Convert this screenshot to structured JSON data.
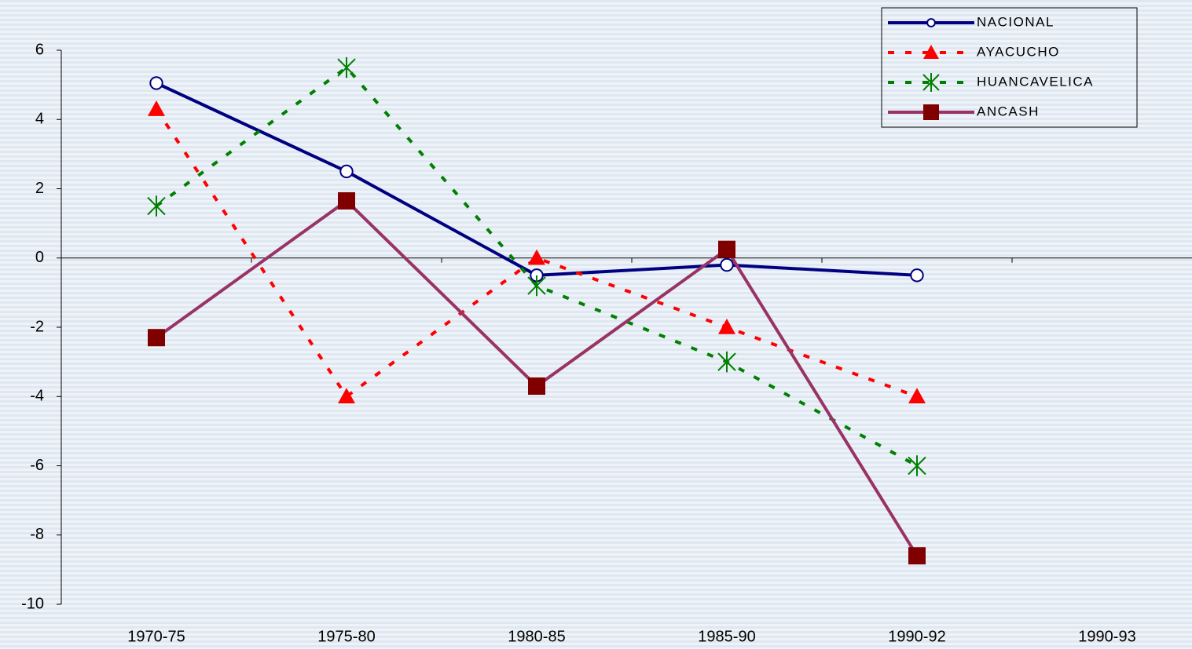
{
  "chart_data": {
    "type": "line",
    "categories": [
      "1970-75",
      "1975-80",
      "1980-85",
      "1985-90",
      "1990-92",
      "1990-93"
    ],
    "series": [
      {
        "name": "NACIONAL",
        "color": "#000080",
        "dash": false,
        "marker": "circle",
        "values": [
          5.05,
          2.5,
          -0.5,
          -0.2,
          -0.5,
          null
        ]
      },
      {
        "name": "AYACUCHO",
        "color": "#ff0000",
        "dash": true,
        "marker": "triangle",
        "values": [
          4.3,
          -4.0,
          0.0,
          -2.0,
          -4.0,
          null
        ]
      },
      {
        "name": "HUANCAVELICA",
        "color": "#008000",
        "dash": true,
        "marker": "asterisk",
        "values": [
          1.5,
          5.5,
          -0.8,
          -3.0,
          -6.0,
          null
        ]
      },
      {
        "name": "ANCASH",
        "color": "#993366",
        "marker_color": "#800000",
        "dash": false,
        "marker": "square",
        "values": [
          -2.3,
          1.65,
          -3.7,
          0.25,
          -8.6,
          null
        ]
      }
    ],
    "ylim": [
      -10,
      6
    ],
    "yticks": [
      -10,
      -8,
      -6,
      -4,
      -2,
      0,
      2,
      4,
      6
    ],
    "legend": "upper right",
    "grid": false
  }
}
